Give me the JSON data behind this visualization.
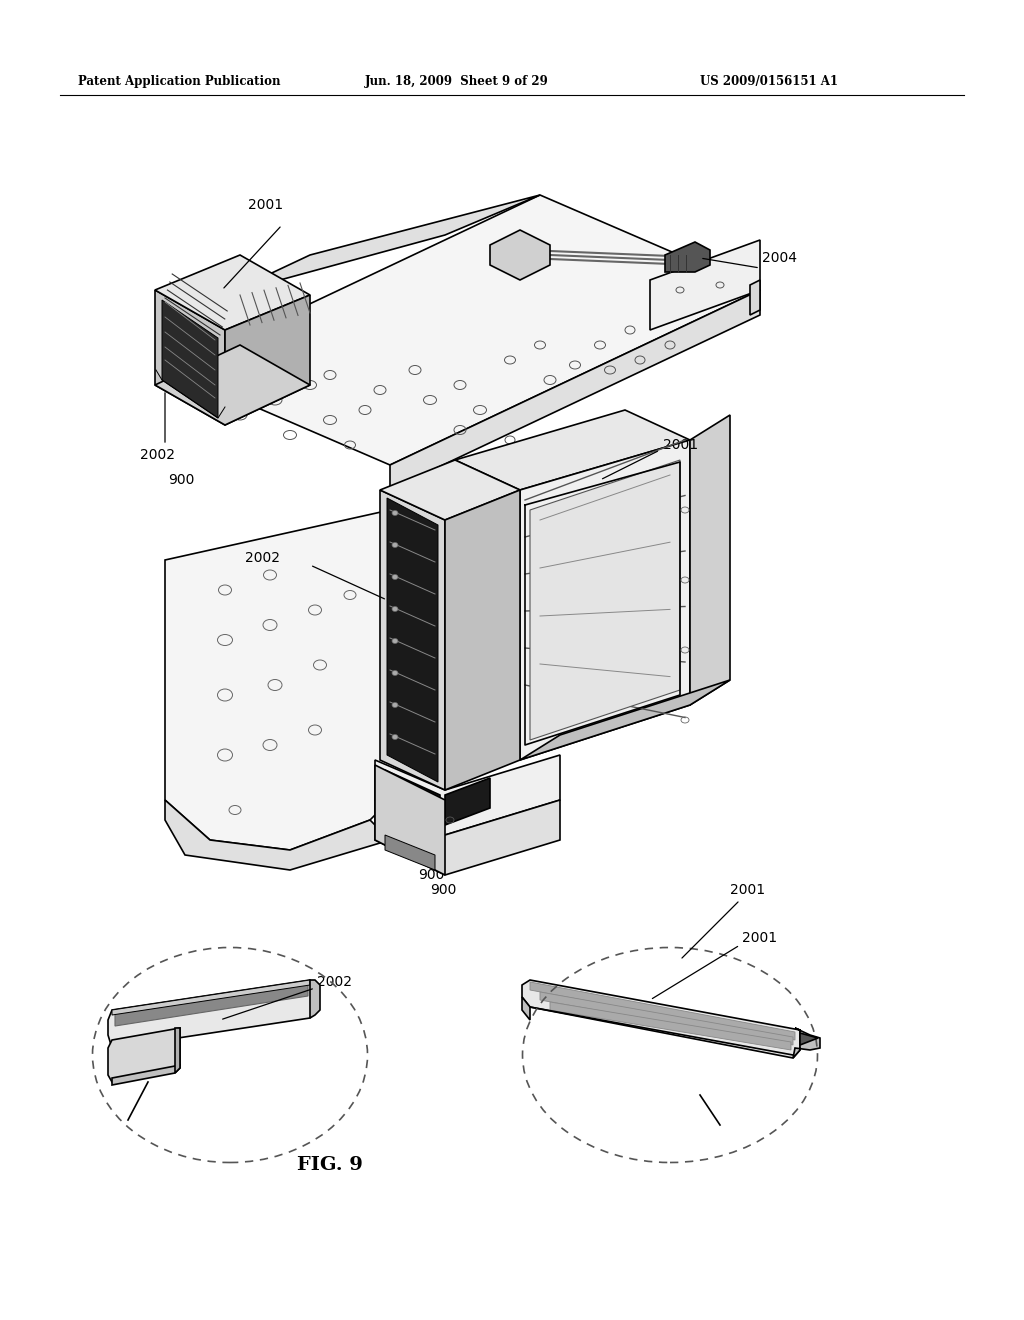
{
  "header_left": "Patent Application Publication",
  "header_center": "Jun. 18, 2009  Sheet 9 of 29",
  "header_right": "US 2009/0156151 A1",
  "figure_label": "FIG. 9",
  "background_color": "#ffffff",
  "text_color": "#000000",
  "line_color": "#000000",
  "lw_thick": 1.8,
  "lw_med": 1.2,
  "lw_thin": 0.7
}
